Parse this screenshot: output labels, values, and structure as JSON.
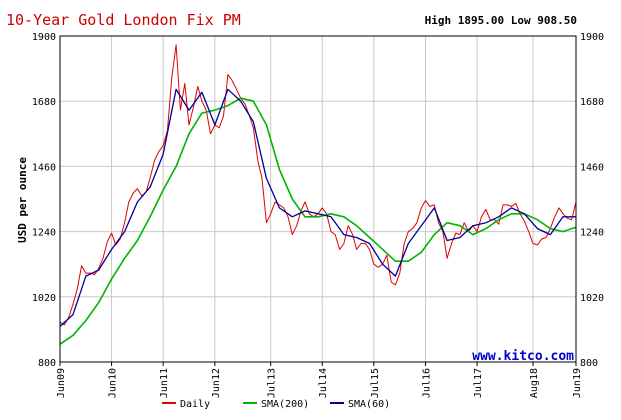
{
  "header": {
    "title": "10-Year Gold London Fix PM",
    "high_low": "High 1895.00 Low 908.50"
  },
  "watermark": "www.kitco.com",
  "colors": {
    "daily": "#e00000",
    "sma200": "#00b400",
    "sma60": "#000099",
    "grid": "#c8c8c8",
    "border": "#000000"
  },
  "chart_data": {
    "type": "line",
    "title": "10-Year Gold London Fix PM",
    "ylabel": "USD per ounce",
    "xlabel": "",
    "ylim": [
      800,
      1900
    ],
    "yticks": [
      800,
      1020,
      1240,
      1460,
      1680,
      1900
    ],
    "x_ticks": [
      "Jun09",
      "Jun10",
      "Jun11",
      "Jun12",
      "Jul13",
      "Jul14",
      "Jul15",
      "Jul16",
      "Jul17",
      "Aug18",
      "Jun19"
    ],
    "grid": true,
    "legend_position": "bottom",
    "high": 1895.0,
    "low": 908.5,
    "series": [
      {
        "name": "Daily",
        "x": [
          "2009-06",
          "2009-07",
          "2009-08",
          "2009-09",
          "2009-10",
          "2009-11",
          "2009-12",
          "2010-01",
          "2010-02",
          "2010-03",
          "2010-04",
          "2010-05",
          "2010-06",
          "2010-07",
          "2010-08",
          "2010-09",
          "2010-10",
          "2010-11",
          "2010-12",
          "2011-01",
          "2011-02",
          "2011-03",
          "2011-04",
          "2011-05",
          "2011-06",
          "2011-07",
          "2011-08",
          "2011-09",
          "2011-10",
          "2011-11",
          "2011-12",
          "2012-01",
          "2012-02",
          "2012-03",
          "2012-04",
          "2012-05",
          "2012-06",
          "2012-07",
          "2012-08",
          "2012-09",
          "2012-10",
          "2012-11",
          "2012-12",
          "2013-01",
          "2013-02",
          "2013-03",
          "2013-04",
          "2013-05",
          "2013-06",
          "2013-07",
          "2013-08",
          "2013-09",
          "2013-10",
          "2013-11",
          "2013-12",
          "2014-01",
          "2014-02",
          "2014-03",
          "2014-04",
          "2014-05",
          "2014-06",
          "2014-07",
          "2014-08",
          "2014-09",
          "2014-10",
          "2014-11",
          "2014-12",
          "2015-01",
          "2015-02",
          "2015-03",
          "2015-04",
          "2015-05",
          "2015-06",
          "2015-07",
          "2015-08",
          "2015-09",
          "2015-10",
          "2015-11",
          "2015-12",
          "2016-01",
          "2016-02",
          "2016-03",
          "2016-04",
          "2016-05",
          "2016-06",
          "2016-07",
          "2016-08",
          "2016-09",
          "2016-10",
          "2016-11",
          "2016-12",
          "2017-01",
          "2017-02",
          "2017-03",
          "2017-04",
          "2017-05",
          "2017-06",
          "2017-07",
          "2017-08",
          "2017-09",
          "2017-10",
          "2017-11",
          "2017-12",
          "2018-01",
          "2018-02",
          "2018-03",
          "2018-04",
          "2018-05",
          "2018-06",
          "2018-07",
          "2018-08",
          "2018-09",
          "2018-10",
          "2018-11",
          "2018-12",
          "2019-01",
          "2019-02",
          "2019-03",
          "2019-04",
          "2019-05",
          "2019-06"
        ],
        "values": [
          935,
          925,
          950,
          995,
          1045,
          1125,
          1100,
          1100,
          1095,
          1115,
          1150,
          1205,
          1235,
          1195,
          1215,
          1270,
          1340,
          1370,
          1385,
          1360,
          1375,
          1420,
          1480,
          1510,
          1530,
          1580,
          1760,
          1870,
          1650,
          1740,
          1600,
          1660,
          1730,
          1680,
          1650,
          1570,
          1600,
          1590,
          1630,
          1770,
          1750,
          1720,
          1690,
          1670,
          1630,
          1590,
          1480,
          1420,
          1270,
          1300,
          1340,
          1330,
          1320,
          1290,
          1230,
          1260,
          1310,
          1340,
          1300,
          1290,
          1300,
          1320,
          1300,
          1240,
          1230,
          1180,
          1200,
          1260,
          1230,
          1180,
          1200,
          1200,
          1180,
          1130,
          1120,
          1130,
          1160,
          1070,
          1060,
          1100,
          1200,
          1240,
          1250,
          1270,
          1320,
          1345,
          1325,
          1330,
          1270,
          1240,
          1150,
          1200,
          1235,
          1230,
          1270,
          1240,
          1260,
          1240,
          1290,
          1315,
          1280,
          1280,
          1265,
          1330,
          1330,
          1325,
          1335,
          1300,
          1275,
          1240,
          1200,
          1195,
          1215,
          1220,
          1250,
          1290,
          1320,
          1300,
          1285,
          1280,
          1340
        ]
      },
      {
        "name": "SMA(200)",
        "x": [
          "2009-06",
          "2009-09",
          "2009-12",
          "2010-03",
          "2010-06",
          "2010-09",
          "2010-12",
          "2011-03",
          "2011-06",
          "2011-09",
          "2011-12",
          "2012-03",
          "2012-06",
          "2012-09",
          "2012-12",
          "2013-03",
          "2013-06",
          "2013-09",
          "2013-12",
          "2014-03",
          "2014-06",
          "2014-09",
          "2014-12",
          "2015-03",
          "2015-06",
          "2015-09",
          "2015-12",
          "2016-03",
          "2016-06",
          "2016-09",
          "2016-12",
          "2017-03",
          "2017-06",
          "2017-09",
          "2017-12",
          "2018-03",
          "2018-06",
          "2018-09",
          "2018-12",
          "2019-03",
          "2019-06"
        ],
        "values": [
          860,
          890,
          940,
          1000,
          1080,
          1150,
          1210,
          1290,
          1380,
          1460,
          1570,
          1640,
          1650,
          1665,
          1690,
          1680,
          1600,
          1450,
          1350,
          1290,
          1290,
          1300,
          1290,
          1260,
          1220,
          1180,
          1140,
          1140,
          1170,
          1230,
          1270,
          1260,
          1230,
          1250,
          1280,
          1300,
          1300,
          1280,
          1250,
          1240,
          1255
        ]
      },
      {
        "name": "SMA(60)",
        "x": [
          "2009-06",
          "2009-09",
          "2009-12",
          "2010-03",
          "2010-06",
          "2010-09",
          "2010-12",
          "2011-03",
          "2011-06",
          "2011-09",
          "2011-12",
          "2012-03",
          "2012-06",
          "2012-09",
          "2012-12",
          "2013-03",
          "2013-06",
          "2013-09",
          "2013-12",
          "2014-03",
          "2014-06",
          "2014-09",
          "2014-12",
          "2015-03",
          "2015-06",
          "2015-09",
          "2015-12",
          "2016-03",
          "2016-06",
          "2016-09",
          "2016-12",
          "2017-03",
          "2017-06",
          "2017-09",
          "2017-12",
          "2018-03",
          "2018-06",
          "2018-09",
          "2018-12",
          "2019-03",
          "2019-06"
        ],
        "values": [
          920,
          960,
          1090,
          1110,
          1180,
          1240,
          1340,
          1390,
          1500,
          1720,
          1650,
          1710,
          1600,
          1720,
          1680,
          1610,
          1420,
          1320,
          1290,
          1310,
          1300,
          1290,
          1230,
          1220,
          1200,
          1130,
          1090,
          1200,
          1260,
          1320,
          1210,
          1220,
          1260,
          1270,
          1290,
          1320,
          1300,
          1250,
          1230,
          1290,
          1290
        ]
      }
    ]
  }
}
